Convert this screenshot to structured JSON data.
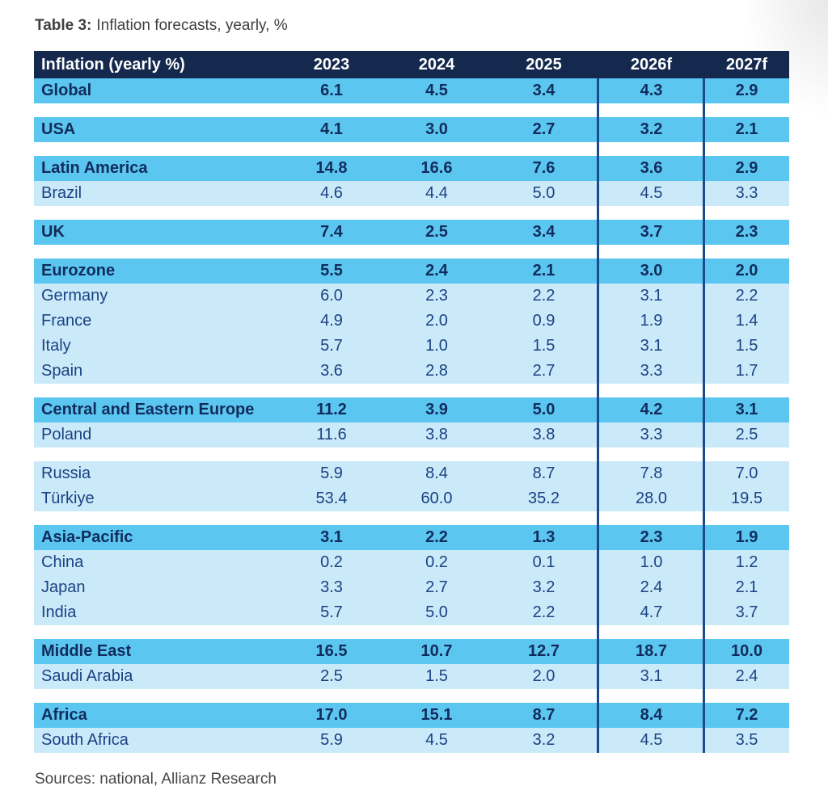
{
  "title": {
    "prefix": "Table 3:",
    "text": "Inflation forecasts, yearly, %"
  },
  "sources": "Sources: national, Allianz Research",
  "colors": {
    "header_bg": "#15294e",
    "region_row_bg": "#5bc6f0",
    "country_row_bg": "#cbeaf9",
    "forecast_divider": "#1a4a8f",
    "header_text": "#ffffff",
    "region_text": "#112c5c",
    "country_text": "#1a4284",
    "note_text": "#474747"
  },
  "chart_data": {
    "type": "table",
    "title": "Table 3: Inflation forecasts, yearly, %",
    "columns": [
      "Inflation (yearly %)",
      "2023",
      "2024",
      "2025",
      "2026f",
      "2027f"
    ],
    "forecast_columns": [
      "2026f",
      "2027f"
    ],
    "rows": [
      {
        "label": "Global",
        "bold": true,
        "values": [
          "6.1",
          "4.5",
          "3.4",
          "4.3",
          "2.9"
        ]
      },
      {
        "label": "USA",
        "bold": true,
        "values": [
          "4.1",
          "3.0",
          "2.7",
          "3.2",
          "2.1"
        ]
      },
      {
        "label": "Latin America",
        "bold": true,
        "values": [
          "14.8",
          "16.6",
          "7.6",
          "3.6",
          "2.9"
        ]
      },
      {
        "label": "Brazil",
        "bold": false,
        "values": [
          "4.6",
          "4.4",
          "5.0",
          "4.5",
          "3.3"
        ]
      },
      {
        "label": "UK",
        "bold": true,
        "values": [
          "7.4",
          "2.5",
          "3.4",
          "3.7",
          "2.3"
        ]
      },
      {
        "label": "Eurozone",
        "bold": true,
        "values": [
          "5.5",
          "2.4",
          "2.1",
          "3.0",
          "2.0"
        ]
      },
      {
        "label": "Germany",
        "bold": false,
        "values": [
          "6.0",
          "2.3",
          "2.2",
          "3.1",
          "2.2"
        ]
      },
      {
        "label": "France",
        "bold": false,
        "values": [
          "4.9",
          "2.0",
          "0.9",
          "1.9",
          "1.4"
        ]
      },
      {
        "label": "Italy",
        "bold": false,
        "values": [
          "5.7",
          "1.0",
          "1.5",
          "3.1",
          "1.5"
        ]
      },
      {
        "label": "Spain",
        "bold": false,
        "values": [
          "3.6",
          "2.8",
          "2.7",
          "3.3",
          "1.7"
        ]
      },
      {
        "label": "Central and Eastern Europe",
        "bold": true,
        "values": [
          "11.2",
          "3.9",
          "5.0",
          "4.2",
          "3.1"
        ]
      },
      {
        "label": "Poland",
        "bold": false,
        "values": [
          "11.6",
          "3.8",
          "3.8",
          "3.3",
          "2.5"
        ]
      },
      {
        "label": "Russia",
        "bold": false,
        "values": [
          "5.9",
          "8.4",
          "8.7",
          "7.8",
          "7.0"
        ]
      },
      {
        "label": "Türkiye",
        "bold": false,
        "values": [
          "53.4",
          "60.0",
          "35.2",
          "28.0",
          "19.5"
        ]
      },
      {
        "label": "Asia-Pacific",
        "bold": true,
        "values": [
          "3.1",
          "2.2",
          "1.3",
          "2.3",
          "1.9"
        ]
      },
      {
        "label": "China",
        "bold": false,
        "values": [
          "0.2",
          "0.2",
          "0.1",
          "1.0",
          "1.2"
        ]
      },
      {
        "label": "Japan",
        "bold": false,
        "values": [
          "3.3",
          "2.7",
          "3.2",
          "2.4",
          "2.1"
        ]
      },
      {
        "label": "India",
        "bold": false,
        "values": [
          "5.7",
          "5.0",
          "2.2",
          "4.7",
          "3.7"
        ]
      },
      {
        "label": "Middle East",
        "bold": true,
        "values": [
          "16.5",
          "10.7",
          "12.7",
          "18.7",
          "10.0"
        ]
      },
      {
        "label": "Saudi Arabia",
        "bold": false,
        "values": [
          "2.5",
          "1.5",
          "2.0",
          "3.1",
          "2.4"
        ]
      },
      {
        "label": "Africa",
        "bold": true,
        "values": [
          "17.0",
          "15.1",
          "8.7",
          "8.4",
          "7.2"
        ]
      },
      {
        "label": "South Africa",
        "bold": false,
        "values": [
          "5.9",
          "4.5",
          "3.2",
          "4.5",
          "3.5"
        ]
      }
    ]
  }
}
